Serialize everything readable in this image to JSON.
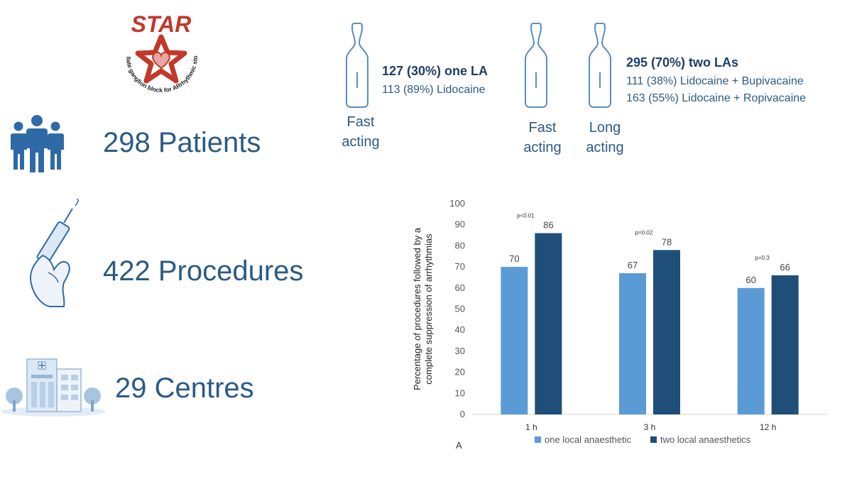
{
  "logo": {
    "name": "STAR",
    "tagline": "STellate ganglion block for ARrhythmic stoRm"
  },
  "stats": {
    "patients": "298 Patients",
    "procedures": "422 Procedures",
    "centres": "29 Centres"
  },
  "icons": {
    "patients": "people-icon",
    "procedures": "syringe-hand-icon",
    "centres": "hospital-icon",
    "ampoule": "ampoule-icon"
  },
  "anaesthetics": {
    "one": {
      "ampoule_label": "Fast\nacting",
      "headline": "127 (30%) one LA",
      "detail": "113 (89%) Lidocaine"
    },
    "two": {
      "ampoule_label_1": "Fast\nacting",
      "ampoule_label_2": "Long\nacting",
      "headline": "295 (70%) two LAs",
      "detail_1": "111 (38%) Lidocaine + Bupivacaine",
      "detail_2": "163 (55%) Lidocaine + Ropivacaine"
    }
  },
  "colors": {
    "text_blue": "#2c5a85",
    "series_one": "#5b9bd5",
    "series_two": "#1f4e79",
    "logo_red": "#c0392b"
  },
  "chart_data": {
    "type": "bar",
    "title": "",
    "ylabel": "Percentage of procedures followed by a complete suppression of arrhythmias",
    "ylabel_lines": [
      "Percentage of procedures followed by a",
      "complete suppression of arrhythmias"
    ],
    "xlabel": "",
    "ylim": [
      0,
      100
    ],
    "yticks": [
      0,
      10,
      20,
      30,
      40,
      50,
      60,
      70,
      80,
      90,
      100
    ],
    "categories": [
      "1 h",
      "3 h",
      "12 h"
    ],
    "series": [
      {
        "name": "one local anaesthetic",
        "values": [
          70,
          67,
          60
        ]
      },
      {
        "name": "two local anaesthetics",
        "values": [
          86,
          78,
          66
        ]
      }
    ],
    "annotations": [
      "p<0.01",
      "p=0.02",
      "p=0.3"
    ],
    "panel_label": "A",
    "legend_position": "bottom",
    "grid": false
  }
}
